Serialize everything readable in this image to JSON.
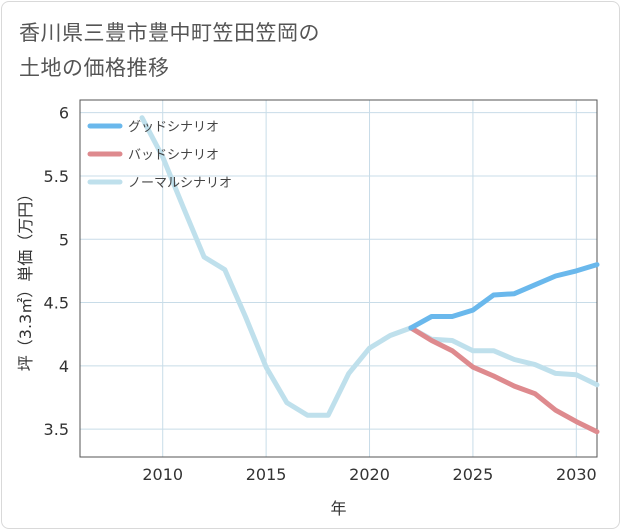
{
  "page": {
    "title_line1": "香川県三豊市豊中町笠田笠岡の",
    "title_line2": "土地の価格推移"
  },
  "chart_data": {
    "type": "line",
    "xlabel": "年",
    "ylabel": "坪（3.3㎡）単価（万円）",
    "xlim": [
      2006,
      2031
    ],
    "ylim": [
      3.28,
      6.1
    ],
    "xticks": [
      2010,
      2015,
      2020,
      2025,
      2030
    ],
    "yticks": [
      3.5,
      4,
      4.5,
      5,
      5.5,
      6
    ],
    "xtick_labels": [
      "2010",
      "2015",
      "2020",
      "2025",
      "2030"
    ],
    "ytick_labels": [
      "3.5",
      "4",
      "4.5",
      "5",
      "5.5",
      "6"
    ],
    "grid": true,
    "legend_position": "top-left",
    "series": [
      {
        "name": "グッドシナリオ",
        "color": "#6ab8ec",
        "x": [
          2022,
          2023,
          2024,
          2025,
          2026,
          2027,
          2028,
          2029,
          2030,
          2031
        ],
        "y": [
          4.3,
          4.39,
          4.39,
          4.44,
          4.56,
          4.57,
          4.64,
          4.71,
          4.75,
          4.8
        ]
      },
      {
        "name": "バッドシナリオ",
        "color": "#de8a8e",
        "x": [
          2022,
          2023,
          2024,
          2025,
          2026,
          2027,
          2028,
          2029,
          2030,
          2031
        ],
        "y": [
          4.3,
          4.2,
          4.12,
          3.99,
          3.92,
          3.84,
          3.78,
          3.65,
          3.56,
          3.48
        ]
      },
      {
        "name": "ノーマルシナリオ",
        "color": "#bfe0ec",
        "x": [
          2009,
          2010,
          2011,
          2012,
          2013,
          2014,
          2015,
          2016,
          2017,
          2018,
          2019,
          2020,
          2021,
          2022,
          2023,
          2024,
          2025,
          2026,
          2027,
          2028,
          2029,
          2030,
          2031
        ],
        "y": [
          5.96,
          5.65,
          5.25,
          4.86,
          4.76,
          4.39,
          3.99,
          3.71,
          3.61,
          3.61,
          3.94,
          4.14,
          4.24,
          4.3,
          4.21,
          4.2,
          4.12,
          4.12,
          4.05,
          4.01,
          3.94,
          3.93,
          3.85
        ]
      }
    ]
  }
}
